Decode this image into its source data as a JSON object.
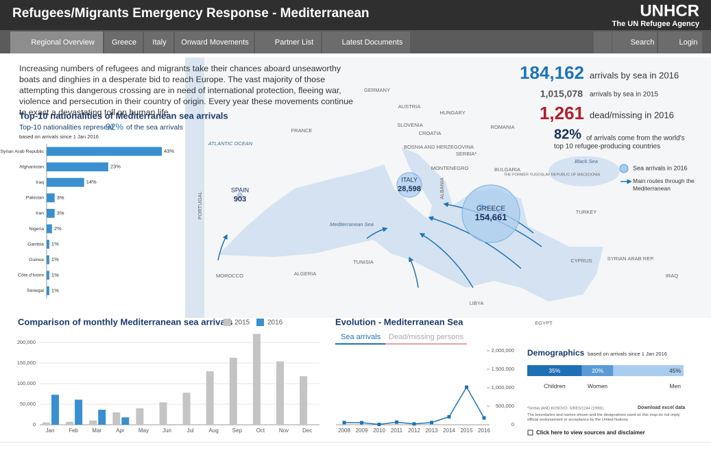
{
  "header": {
    "title": "Refugees/Migrants Emergency Response - Mediterranean",
    "logo": "UNHCR",
    "tagline": "The UN Refugee Agency"
  },
  "nav": {
    "tabs": [
      "Regional Overview",
      "Greece",
      "Italy",
      "Onward Movements",
      "Partner List",
      "Latest Documents"
    ],
    "tools": [
      "Search",
      "Login"
    ]
  },
  "intro": "Increasing numbers of refugees and migrants take their chances aboard unseaworthy boats and dinghies in a desperate bid to reach Europe. The vast majority of those attempting this dangerous crossing are in need of international protection, fleeing war, violence and persecution in their country of origin. Every year these movements continue to exact a devastating toll on human life.",
  "stats": {
    "arrivals_2016": {
      "value": "184,162",
      "label": "arrivals by sea in 2016"
    },
    "arrivals_2015": {
      "value": "1,015,078",
      "label": "arrivals by sea in 2015"
    },
    "dead_missing": {
      "value": "1,261",
      "label": "dead/missing in 2016"
    },
    "top10_share": {
      "value": "82%",
      "label": [
        "of arrivals come from the world's",
        "top 10 refugee-producing countries"
      ]
    }
  },
  "map": {
    "labels": [
      "GERMANY",
      "AUSTRIA",
      "HUNGARY",
      "SLOVENIA",
      "CROATIA",
      "ROMANIA",
      "FRANCE",
      "BOSNIA AND HERZEGOVINA",
      "SERBIA*",
      "MONTENEGRO",
      "BULGARIA",
      "THE FORMER YUGOSLAV REPUBLIC OF MACEDONIA",
      "ALBANIA",
      "PORTUGAL",
      "TURKEY",
      "CYPRUS",
      "SYRIAN ARAB REP.",
      "IRAQ",
      "TUNISIA",
      "MOROCCO",
      "ALGERIA",
      "LIBYA",
      "EGYPT",
      "ATLANTIC OCEAN",
      "Mediterranean Sea",
      "Black Sea"
    ],
    "points": [
      {
        "name": "SPAIN",
        "value": 903,
        "value_label": "903"
      },
      {
        "name": "ITALY",
        "value": 28598,
        "value_label": "28,598"
      },
      {
        "name": "GREECE",
        "value": 154661,
        "value_label": "154,661"
      }
    ],
    "legend": {
      "bubbles": "Sea arrivals in 2016",
      "routes": "Main routes through the Mediterranean"
    }
  },
  "chart_data": [
    {
      "type": "hbar",
      "title": "Top-10 nationalities of Mediterranean sea arrivals",
      "subtitle": "Top-10 nationalities represent",
      "highlight": "92%",
      "subtitle_end": "of the sea arrivals",
      "note": "based on arrivals since 1 Jan 2016",
      "categories": [
        "Syrian Arab Republic",
        "Afghanistan",
        "Iraq",
        "Pakistan",
        "Iran",
        "Nigeria",
        "Gambia",
        "Guinea",
        "Côte d'Ivoire",
        "Senegal"
      ],
      "values": [
        43,
        23,
        14,
        3,
        3,
        2,
        1,
        1,
        1,
        1
      ],
      "value_labels": [
        "43%",
        "23%",
        "14%",
        "3%",
        "3%",
        "2%",
        "1%",
        "1%",
        "1%",
        "1%"
      ],
      "color": "#3a8fd0"
    },
    {
      "type": "bar",
      "title": "Comparison of monthly Mediterranean sea arrivals",
      "categories": [
        "Jan",
        "Feb",
        "Mar",
        "Apr",
        "May",
        "Jun",
        "Jul",
        "Aug",
        "Sep",
        "Oct",
        "Nov",
        "Dec"
      ],
      "series": [
        {
          "name": "2015",
          "color": "#c4c4c4",
          "values": [
            5500,
            7300,
            10500,
            30000,
            40000,
            54500,
            78000,
            130000,
            163000,
            221000,
            154000,
            118000
          ]
        },
        {
          "name": "2016",
          "color": "#3a8fd0",
          "values": [
            73000,
            61000,
            36500,
            18000,
            null,
            null,
            null,
            null,
            null,
            null,
            null,
            null
          ]
        }
      ],
      "ylim": [
        0,
        225000
      ],
      "yticks": [
        0,
        {
          "value": 50000,
          "label": "50,000"
        },
        {
          "value": 100000,
          "label": "100,000"
        },
        {
          "value": 150000,
          "label": "150,000"
        },
        {
          "value": 200000,
          "label": "200,000"
        }
      ],
      "grid": true
    },
    {
      "type": "line",
      "title": "Evolution - Mediterranean Sea",
      "tabs": [
        "Sea arrivals",
        "Dead/missing persons"
      ],
      "categories": [
        "2008",
        "2009",
        "2010",
        "2011",
        "2012",
        "2013",
        "2014",
        "2015",
        "2016"
      ],
      "values": [
        59000,
        56000,
        9700,
        70000,
        22500,
        60000,
        216000,
        1015078,
        184162
      ],
      "color": "#1f74b8",
      "ylim": [
        0,
        2100000
      ],
      "yticks": [
        0,
        {
          "value": 500000,
          "label": "500,000"
        },
        {
          "value": 1000000,
          "label": "1,000,000"
        },
        {
          "value": 1500000,
          "label": "1,500,000"
        },
        {
          "value": 2000000,
          "label": "2,000,000"
        }
      ]
    },
    {
      "type": "stacked",
      "title": "Demographics",
      "note": "based on arrivals since 1 Jan 2016",
      "categories": [
        "Children",
        "Women",
        "Men"
      ],
      "values": [
        35,
        20,
        45
      ],
      "value_labels": [
        "35%",
        "20%",
        "45%"
      ],
      "colors": [
        "#1f6fb5",
        "#5b9bd5",
        "#a9cdee"
      ]
    }
  ],
  "footer": {
    "serbia_note": "*Serbia (AND KOSOVO: S/RES/1244 (1999))",
    "download": "Download excel data",
    "disclaimer": "The boundaries and names shown and the designations used on this map do not imply official endorsement or acceptance by the United Nations",
    "sources_link": "Click here to view sources and disclaimer"
  }
}
